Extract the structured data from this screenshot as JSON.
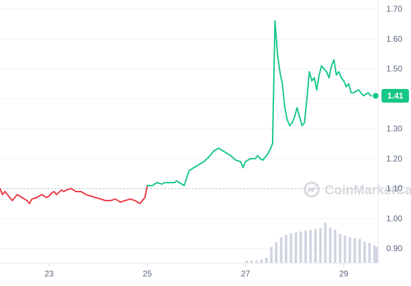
{
  "chart_data": {
    "type": "line",
    "title": "",
    "xlabel": "",
    "ylabel": "",
    "x_tick_labels": [
      "23",
      "25",
      "27",
      "29"
    ],
    "y_tick_labels": [
      "0.90",
      "1.00",
      "1.10",
      "1.20",
      "1.30",
      "1.40",
      "1.50",
      "1.60",
      "1.70"
    ],
    "ylim": [
      0.85,
      1.73
    ],
    "xlim": [
      22.0,
      29.7
    ],
    "reference_level": 1.1,
    "current_price_label": "1.41",
    "current_price": 1.41,
    "watermark": "CoinMarketCap",
    "grid": true,
    "legend": "none",
    "series": [
      {
        "kind": "price",
        "x": [
          22.0,
          22.05,
          22.1,
          22.2,
          22.25,
          22.35,
          22.45,
          22.55,
          22.6,
          22.65,
          22.75,
          22.85,
          22.95,
          23.0,
          23.05,
          23.1,
          23.15,
          23.25,
          23.3,
          23.35,
          23.45,
          23.55,
          23.65,
          23.75,
          23.85,
          23.95,
          24.05,
          24.15,
          24.25,
          24.35,
          24.45,
          24.55,
          24.65,
          24.75,
          24.8,
          24.85,
          24.9,
          24.95,
          25.0,
          25.1,
          25.2,
          25.3,
          25.35,
          25.45,
          25.55,
          25.6,
          25.65,
          25.75,
          25.85,
          25.95,
          26.05,
          26.15,
          26.25,
          26.35,
          26.45,
          26.5,
          26.55,
          26.6,
          26.7,
          26.8,
          26.9,
          26.95,
          27.0,
          27.1,
          27.2,
          27.25,
          27.3,
          27.35,
          27.4,
          27.45,
          27.5,
          27.55,
          27.6,
          27.65,
          27.7,
          27.75,
          27.8,
          27.85,
          27.9,
          27.95,
          28.0,
          28.05,
          28.1,
          28.15,
          28.2,
          28.25,
          28.3,
          28.35,
          28.4,
          28.45,
          28.5,
          28.55,
          28.6,
          28.65,
          28.7,
          28.75,
          28.8,
          28.85,
          28.9,
          28.95,
          29.0,
          29.05,
          29.1,
          29.15,
          29.2,
          29.3,
          29.4,
          29.5,
          29.55,
          29.6,
          29.65
        ],
        "y": [
          1.1,
          1.08,
          1.09,
          1.07,
          1.06,
          1.08,
          1.07,
          1.06,
          1.05,
          1.065,
          1.07,
          1.08,
          1.07,
          1.075,
          1.085,
          1.09,
          1.08,
          1.095,
          1.09,
          1.095,
          1.1,
          1.09,
          1.09,
          1.08,
          1.075,
          1.07,
          1.065,
          1.06,
          1.06,
          1.065,
          1.055,
          1.06,
          1.065,
          1.06,
          1.055,
          1.05,
          1.06,
          1.07,
          1.11,
          1.11,
          1.12,
          1.115,
          1.12,
          1.12,
          1.12,
          1.125,
          1.12,
          1.11,
          1.16,
          1.17,
          1.18,
          1.19,
          1.205,
          1.225,
          1.235,
          1.23,
          1.225,
          1.22,
          1.21,
          1.195,
          1.19,
          1.17,
          1.19,
          1.2,
          1.2,
          1.21,
          1.2,
          1.195,
          1.205,
          1.215,
          1.23,
          1.25,
          1.66,
          1.55,
          1.49,
          1.45,
          1.37,
          1.33,
          1.31,
          1.32,
          1.34,
          1.37,
          1.34,
          1.31,
          1.32,
          1.4,
          1.49,
          1.46,
          1.47,
          1.43,
          1.48,
          1.51,
          1.5,
          1.49,
          1.47,
          1.51,
          1.53,
          1.48,
          1.49,
          1.47,
          1.46,
          1.44,
          1.45,
          1.42,
          1.42,
          1.43,
          1.41,
          1.42,
          1.41,
          1.41,
          1.41
        ]
      }
    ],
    "volume": {
      "x": [
        27.0,
        27.1,
        27.2,
        27.3,
        27.4,
        27.5,
        27.6,
        27.7,
        27.8,
        27.9,
        28.0,
        28.1,
        28.2,
        28.3,
        28.4,
        28.5,
        28.6,
        28.7,
        28.8,
        28.9,
        29.0,
        29.1,
        29.2,
        29.3,
        29.4,
        29.5,
        29.6,
        29.65
      ],
      "relative": [
        0.05,
        0.05,
        0.06,
        0.08,
        0.12,
        0.38,
        0.5,
        0.62,
        0.68,
        0.72,
        0.74,
        0.76,
        0.78,
        0.8,
        0.82,
        0.85,
        0.98,
        0.85,
        0.8,
        0.7,
        0.66,
        0.62,
        0.6,
        0.58,
        0.52,
        0.48,
        0.42,
        0.38
      ]
    },
    "colors": {
      "up": "#16c784",
      "down": "#ea3943",
      "area_fill": "#16c784",
      "volume": "#c7ccd9",
      "grid": "#eff2f5",
      "axis_text": "#58667e",
      "reference_line": "#b5bac5",
      "watermark": "#d5d9de"
    }
  }
}
